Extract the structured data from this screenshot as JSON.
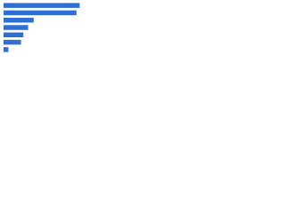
{
  "chart_data": {
    "type": "bar",
    "orientation": "horizontal",
    "categories": [
      null,
      null,
      null,
      null,
      null,
      null,
      null
    ],
    "values": [
      96,
      92,
      38,
      31,
      25,
      22,
      6
    ],
    "color": "#2f6ed3",
    "xlim": [
      0,
      100
    ]
  }
}
